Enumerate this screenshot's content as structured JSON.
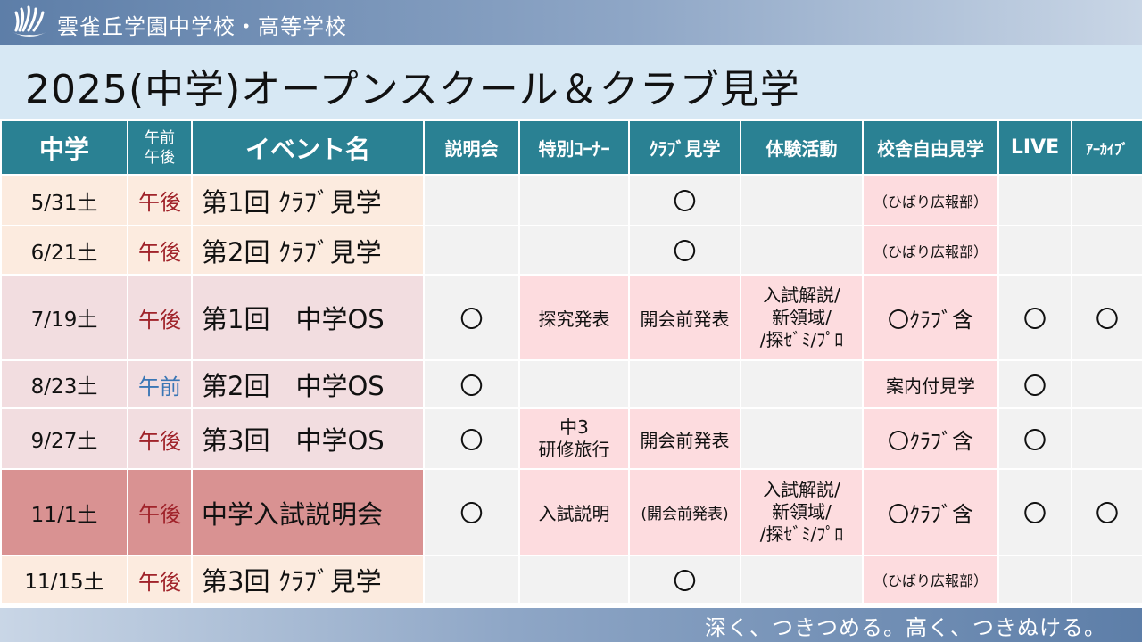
{
  "header": {
    "logo_icon": "school-crest-icon",
    "school_name": "雲雀丘学園中学校・高等学校",
    "title": "2025(中学)オープンスクール＆クラブ見学"
  },
  "colors": {
    "header_bg": "#2a8193",
    "pm_text": "#a0232a",
    "am_text": "#3a76b5",
    "highlight_pink": "#fddcdf",
    "exam_row": "#d99292"
  },
  "table": {
    "headers": {
      "date": "中学",
      "ampm_top": "午前",
      "ampm_bottom": "午後",
      "event": "イベント名",
      "briefing": "説明会",
      "special": "特別ｺｰﾅｰ",
      "club": "ｸﾗﾌﾞ見学",
      "experience": "体験活動",
      "tour": "校舎自由見学",
      "live": "LIVE",
      "archive": "ｱｰｶｲﾌﾞ"
    },
    "rows": [
      {
        "date": "5/31土",
        "time": "午後",
        "event": "第1回 ｸﾗﾌﾞ見学",
        "briefing": "",
        "special": "",
        "club": "〇",
        "experience": "",
        "tour": "（ひばり広報部）",
        "live": "",
        "archive": ""
      },
      {
        "date": "6/21土",
        "time": "午後",
        "event": "第2回 ｸﾗﾌﾞ見学",
        "briefing": "",
        "special": "",
        "club": "〇",
        "experience": "",
        "tour": "（ひばり広報部）",
        "live": "",
        "archive": ""
      },
      {
        "date": "7/19土",
        "time": "午後",
        "event": "第1回　中学OS",
        "briefing": "〇",
        "special": "探究発表",
        "club": "開会前発表",
        "experience_lines": [
          "入試解説/",
          "新領域/",
          "/探ｾﾞﾐ/ﾌﾟﾛ"
        ],
        "tour": "〇ｸﾗﾌﾞ含",
        "live": "〇",
        "archive": "〇"
      },
      {
        "date": "8/23土",
        "time": "午前",
        "event": "第2回　中学OS",
        "briefing": "〇",
        "special": "",
        "club": "",
        "experience": "",
        "tour": "案内付見学",
        "live": "〇",
        "archive": ""
      },
      {
        "date": "9/27土",
        "time": "午後",
        "event": "第3回　中学OS",
        "briefing": "〇",
        "special_lines": [
          "中3",
          "研修旅行"
        ],
        "club": "開会前発表",
        "experience": "",
        "tour": "〇ｸﾗﾌﾞ含",
        "live": "〇",
        "archive": ""
      },
      {
        "date": "11/1土",
        "time": "午後",
        "event": "中学入試説明会",
        "briefing": "〇",
        "special": "入試説明",
        "club": "(開会前発表)",
        "experience_lines": [
          "入試解説/",
          "新領域/",
          "/探ｾﾞﾐ/ﾌﾟﾛ"
        ],
        "tour": "〇ｸﾗﾌﾞ含",
        "live": "〇",
        "archive": "〇"
      },
      {
        "date": "11/15土",
        "time": "午後",
        "event": "第3回 ｸﾗﾌﾞ見学",
        "briefing": "",
        "special": "",
        "club": "〇",
        "experience": "",
        "tour": "（ひばり広報部）",
        "live": "",
        "archive": ""
      }
    ]
  },
  "footer": {
    "slogan": "深く、つきつめる。高く、つきぬける。"
  }
}
